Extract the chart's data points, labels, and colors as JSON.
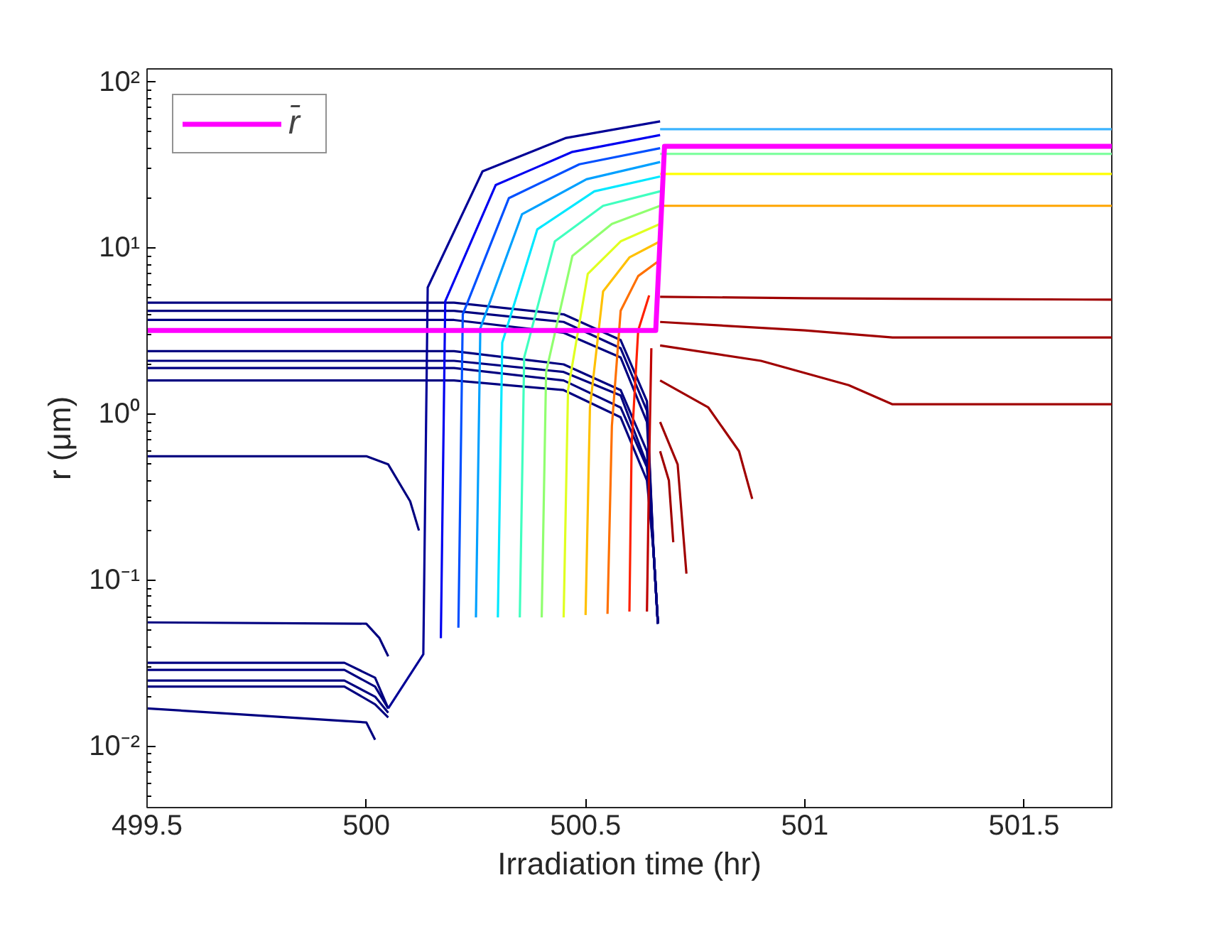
{
  "chart_data": {
    "type": "line",
    "xlabel": "Irradiation time (hr)",
    "ylabel": "r (μm)",
    "log": "y",
    "legend": "top left",
    "line_style": "solid",
    "xlim": [
      499.5,
      501.7
    ],
    "ylim": [
      0.0043,
      120
    ],
    "xticks": [
      499.5,
      500,
      500.5,
      501,
      501.5
    ],
    "yticks": [
      {
        "value": 0.01,
        "label": "10⁻²"
      },
      {
        "value": 0.1,
        "label": "10⁻¹"
      },
      {
        "value": 1,
        "label": "10⁰"
      },
      {
        "value": 10,
        "label": "10¹"
      },
      {
        "value": 100,
        "label": "10²"
      }
    ],
    "series": [
      {
        "color": "#000080",
        "x": [
          499.5,
          500.2,
          500.45,
          500.58,
          500.64,
          500.655,
          500.665
        ],
        "values": [
          4.7,
          4.7,
          4.0,
          2.8,
          1.2,
          0.15,
          0.055
        ]
      },
      {
        "color": "#000080",
        "x": [
          499.5,
          500.2,
          500.45,
          500.58,
          500.64,
          500.655,
          500.665
        ],
        "values": [
          4.2,
          4.2,
          3.6,
          2.5,
          1.05,
          0.15,
          0.055
        ]
      },
      {
        "color": "#000080",
        "x": [
          499.5,
          500.2,
          500.45,
          500.58,
          500.64,
          500.655,
          500.665
        ],
        "values": [
          3.7,
          3.7,
          3.1,
          2.2,
          0.9,
          0.15,
          0.055
        ]
      },
      {
        "color": "#000080",
        "x": [
          499.5,
          500.2,
          500.45,
          500.58,
          500.64,
          500.655,
          500.665
        ],
        "values": [
          2.4,
          2.4,
          2.0,
          1.4,
          0.6,
          0.15,
          0.055
        ]
      },
      {
        "color": "#000080",
        "x": [
          499.5,
          500.2,
          500.45,
          500.58,
          500.64,
          500.655,
          500.665
        ],
        "values": [
          2.1,
          2.1,
          1.8,
          1.3,
          0.5,
          0.15,
          0.055
        ]
      },
      {
        "color": "#000080",
        "x": [
          499.5,
          500.2,
          500.45,
          500.58,
          500.64,
          500.655,
          500.665
        ],
        "values": [
          1.9,
          1.9,
          1.6,
          1.1,
          0.48,
          0.15,
          0.055
        ]
      },
      {
        "color": "#000080",
        "x": [
          499.5,
          500.2,
          500.45,
          500.58,
          500.64,
          500.655,
          500.665
        ],
        "values": [
          1.6,
          1.6,
          1.4,
          0.96,
          0.4,
          0.15,
          0.055
        ]
      },
      {
        "color": "#000080",
        "x": [
          499.5,
          500.0,
          500.05,
          500.1,
          500.12
        ],
        "values": [
          0.56,
          0.56,
          0.5,
          0.3,
          0.2
        ]
      },
      {
        "color": "#000080",
        "x": [
          499.5,
          500.0,
          500.03,
          500.05
        ],
        "values": [
          0.056,
          0.055,
          0.045,
          0.035
        ]
      },
      {
        "color": "#000080",
        "x": [
          499.5,
          499.95,
          500.02,
          500.05
        ],
        "values": [
          0.032,
          0.032,
          0.026,
          0.017
        ]
      },
      {
        "color": "#000080",
        "x": [
          499.5,
          499.95,
          500.02,
          500.05
        ],
        "values": [
          0.029,
          0.029,
          0.023,
          0.017
        ]
      },
      {
        "color": "#000080",
        "x": [
          499.5,
          499.95,
          500.02,
          500.05
        ],
        "values": [
          0.025,
          0.025,
          0.02,
          0.016
        ]
      },
      {
        "color": "#000080",
        "x": [
          499.5,
          499.95,
          500.02,
          500.05
        ],
        "values": [
          0.023,
          0.023,
          0.018,
          0.015
        ]
      },
      {
        "color": "#000080",
        "x": [
          499.5,
          500.0,
          500.02
        ],
        "values": [
          0.017,
          0.014,
          0.011
        ]
      },
      {
        "color": "#000096",
        "x": [
          500.05,
          500.13,
          500.14,
          500.265,
          500.454,
          500.67
        ],
        "values": [
          0.017,
          0.036,
          5.8,
          29,
          46,
          58
        ]
      },
      {
        "color": "#0000f0",
        "x": [
          500.17,
          500.18,
          500.295,
          500.47,
          500.67
        ],
        "values": [
          0.045,
          4.8,
          24,
          38,
          48
        ]
      },
      {
        "color": "#0050ff",
        "x": [
          500.21,
          500.22,
          500.325,
          500.486,
          500.67
        ],
        "values": [
          0.052,
          4.0,
          20,
          32,
          40
        ]
      },
      {
        "color": "#00a0ff",
        "x": [
          500.25,
          500.26,
          500.355,
          500.502,
          500.67
        ],
        "values": [
          0.06,
          3.3,
          16,
          26,
          33
        ]
      },
      {
        "color": "#00e8ff",
        "x": [
          500.3,
          500.31,
          500.39,
          500.52,
          500.67
        ],
        "values": [
          0.06,
          2.7,
          13,
          22,
          27
        ]
      },
      {
        "color": "#40ffbf",
        "x": [
          500.35,
          500.36,
          500.43,
          500.54,
          500.67
        ],
        "values": [
          0.06,
          2.2,
          11,
          18,
          22
        ]
      },
      {
        "color": "#90ff6f",
        "x": [
          500.4,
          500.41,
          500.47,
          500.56,
          500.67
        ],
        "values": [
          0.06,
          1.8,
          9,
          14,
          18
        ]
      },
      {
        "color": "#e0ff20",
        "x": [
          500.45,
          500.46,
          500.505,
          500.58,
          500.67
        ],
        "values": [
          0.06,
          1.4,
          7,
          11,
          14
        ]
      },
      {
        "color": "#ffc000",
        "x": [
          500.5,
          500.51,
          500.54,
          500.6,
          500.67
        ],
        "values": [
          0.062,
          1.1,
          5.5,
          8.8,
          11
        ]
      },
      {
        "color": "#ff7000",
        "x": [
          500.55,
          500.56,
          500.58,
          500.62,
          500.67
        ],
        "values": [
          0.063,
          0.85,
          4.2,
          6.8,
          8.5
        ]
      },
      {
        "color": "#ff2000",
        "x": [
          500.6,
          500.605,
          500.62,
          500.645
        ],
        "values": [
          0.065,
          0.65,
          3.2,
          5.2
        ]
      },
      {
        "color": "#c00000",
        "x": [
          500.64,
          500.645,
          500.65
        ],
        "values": [
          0.065,
          0.5,
          2.5
        ]
      },
      {
        "color": "#3cb4ff",
        "x": [
          500.67,
          501.7
        ],
        "values": [
          52,
          52
        ]
      },
      {
        "color": "#80ffa0",
        "x": [
          500.67,
          501.7
        ],
        "values": [
          37,
          37
        ]
      },
      {
        "color": "#ffff00",
        "x": [
          500.67,
          501.7
        ],
        "values": [
          28,
          28
        ]
      },
      {
        "color": "#ffa500",
        "x": [
          500.67,
          501.7
        ],
        "values": [
          18,
          18
        ]
      },
      {
        "color": "#a00000",
        "x": [
          500.67,
          501.0,
          501.7
        ],
        "values": [
          5.1,
          5.0,
          4.9
        ]
      },
      {
        "color": "#a00000",
        "x": [
          500.67,
          501.0,
          501.2,
          501.7
        ],
        "values": [
          3.6,
          3.2,
          2.9,
          2.9
        ]
      },
      {
        "color": "#a00000",
        "x": [
          500.67,
          500.9,
          501.1,
          501.2,
          501.7
        ],
        "values": [
          2.6,
          2.1,
          1.5,
          1.15,
          1.15
        ]
      },
      {
        "color": "#a00000",
        "x": [
          500.67,
          500.78,
          500.85,
          500.88
        ],
        "values": [
          1.6,
          1.1,
          0.6,
          0.31
        ]
      },
      {
        "color": "#a00000",
        "x": [
          500.67,
          500.71,
          500.73
        ],
        "values": [
          0.9,
          0.5,
          0.11
        ]
      },
      {
        "color": "#a00000",
        "x": [
          500.67,
          500.69,
          500.7
        ],
        "values": [
          0.6,
          0.4,
          0.17
        ]
      },
      {
        "name": "r̄",
        "color": "#ff00ff",
        "x": [
          499.5,
          500.66,
          500.68,
          501.7
        ],
        "values": [
          3.2,
          3.2,
          41,
          41
        ]
      }
    ]
  }
}
